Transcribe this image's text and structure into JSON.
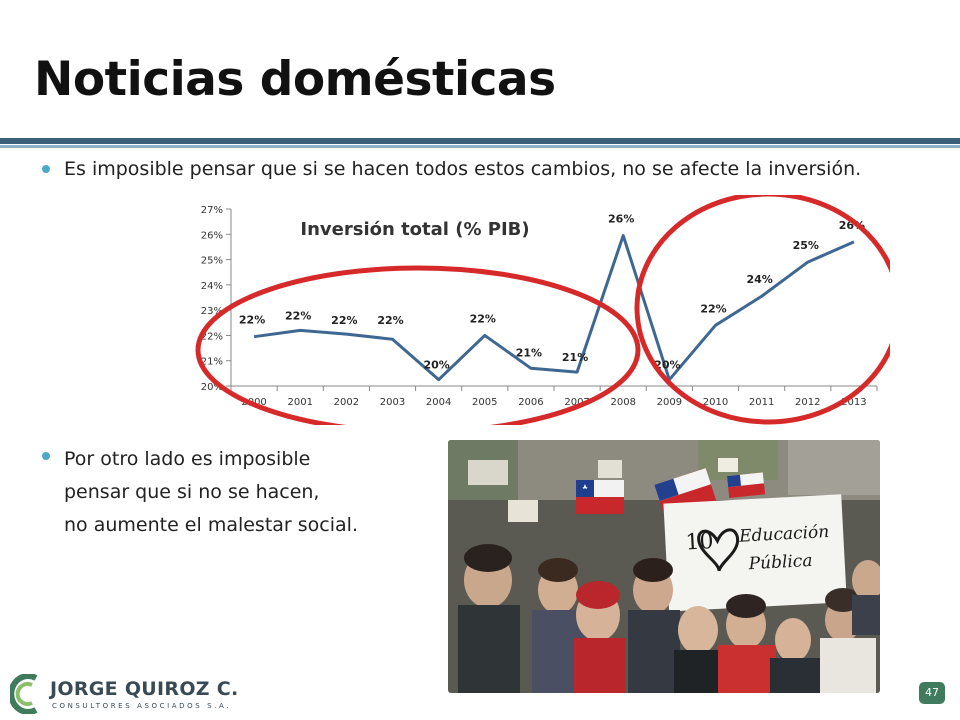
{
  "slide": {
    "title": "Noticias domésticas",
    "bullets": [
      "Es imposible pensar que si se hacen todos estos cambios, no se afecte la inversión.",
      "Por otro lado es imposible pensar  que si no se hacen, no aumente el malestar social."
    ],
    "bullet2_lines": [
      "Por otro lado es imposible",
      "pensar  que si no se hacen,",
      "no aumente el malestar social."
    ],
    "photo_sign_text": "Educación Pública",
    "page_number": "47",
    "colors": {
      "title_rule": "#3a5f78",
      "bullet_dot": "#4aa8c8",
      "series_line": "#3e6791",
      "highlight_circle": "#d62a2a",
      "page_badge": "#3f7b5c"
    }
  },
  "logo": {
    "name": "JORGE QUIROZ C.",
    "subtitle": "CONSULTORES ASOCIADOS S.A."
  },
  "chart_data": {
    "type": "line",
    "title": "Inversión total (% PIB)",
    "xlabel": "",
    "ylabel": "",
    "ylim": [
      20,
      27
    ],
    "y_ticks": [
      "20%",
      "21%",
      "22%",
      "23%",
      "24%",
      "25%",
      "26%",
      "27%"
    ],
    "categories": [
      "2000",
      "2001",
      "2002",
      "2003",
      "2004",
      "2005",
      "2006",
      "2007",
      "2008",
      "2009",
      "2010",
      "2011",
      "2012",
      "2013"
    ],
    "values": [
      21.95,
      22.2,
      22.05,
      21.85,
      20.25,
      22.0,
      20.7,
      20.55,
      25.95,
      20.25,
      22.4,
      23.55,
      24.9,
      25.7
    ],
    "data_labels": [
      "22%",
      "22%",
      "22%",
      "22%",
      "20%",
      "22%",
      "21%",
      "21%",
      "26%",
      "20%",
      "22%",
      "24%",
      "25%",
      "26%"
    ],
    "grid": false,
    "legend": "none"
  }
}
